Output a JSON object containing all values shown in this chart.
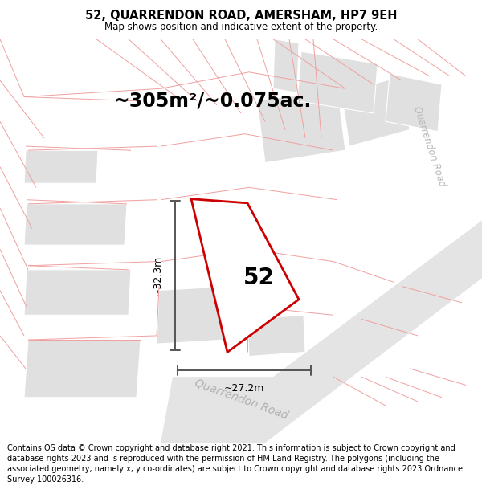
{
  "title": "52, QUARRENDON ROAD, AMERSHAM, HP7 9EH",
  "subtitle": "Map shows position and indicative extent of the property.",
  "footer": "Contains OS data © Crown copyright and database right 2021. This information is subject to Crown copyright and database rights 2023 and is reproduced with the permission of HM Land Registry. The polygons (including the associated geometry, namely x, y co-ordinates) are subject to Crown copyright and database rights 2023 Ordnance Survey 100026316.",
  "area_label": "~305m²/~0.075ac.",
  "house_number": "52",
  "dim_height": "~32.3m",
  "dim_width": "~27.2m",
  "road_label_main": "Quarrendon Road",
  "road_label_right": "Quarrendon Road",
  "bg_color": "#ffffff",
  "map_bg": "#f8f8f8",
  "boundary_color": "#cc0000",
  "pink_line_color": "#f0a0a0",
  "dim_line_color": "#555555",
  "road_fill": "#e8e8e8",
  "road_edge": "#cccccc",
  "bldg_fill": "#e0e0e0",
  "title_fontsize": 10.5,
  "subtitle_fontsize": 8.5,
  "footer_fontsize": 7.0,
  "area_fontsize": 17,
  "number_fontsize": 20,
  "dim_fontsize": 9,
  "road_fontsize": 10
}
